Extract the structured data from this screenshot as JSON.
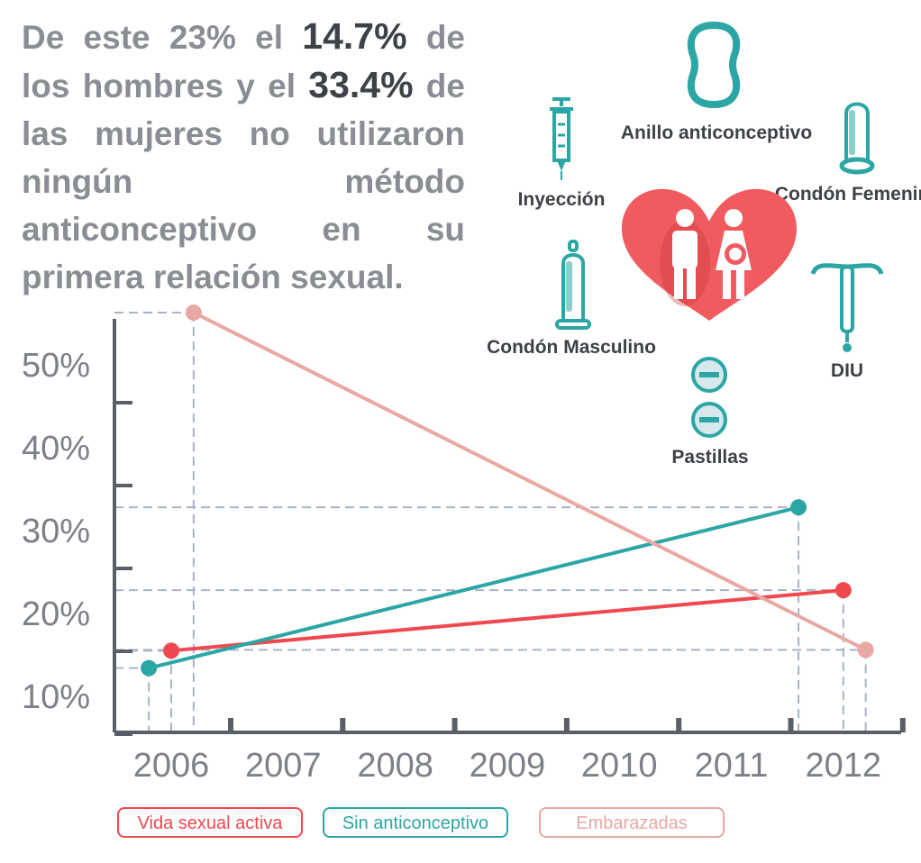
{
  "intro": {
    "p1": "De este 23% el ",
    "v1": "14.7%",
    "p2": " de los hombres y el ",
    "v2": "33.4%",
    "p3": " de las mujeres no utilizaron ningún método anticonceptivo en su primera relación sexual."
  },
  "methods": {
    "ring": "Anillo anticonceptivo",
    "injection": "Inyección",
    "female_condom": "Condón Femenino",
    "male_condom": "Condón Masculino",
    "iud": "DIU",
    "pills": "Pastillas"
  },
  "colors": {
    "teal": "#2ca6a4",
    "red": "#f0484f",
    "pink": "#e8a8a4",
    "heart": "#f15a5f",
    "axis": "#5a5e66",
    "guide": "#a9b3c6",
    "tick_text": "#7d8088"
  },
  "chart_data": {
    "type": "line",
    "x_ticks": [
      "2006",
      "2007",
      "2008",
      "2009",
      "2010",
      "2011",
      "2012"
    ],
    "y_ticks": [
      "10%",
      "20%",
      "30%",
      "40%",
      "50%"
    ],
    "series": [
      {
        "name": "Vida sexual activa",
        "color": "#f0484f",
        "points": [
          [
            2006,
            15.4
          ],
          [
            2012,
            22.7
          ]
        ]
      },
      {
        "name": "Sin anticonceptivo",
        "color": "#2ca6a4",
        "points": [
          [
            2005.8,
            13.3
          ],
          [
            2011.6,
            32.7
          ]
        ]
      },
      {
        "name": "Embarazadas",
        "color": "#e8a8a4",
        "points": [
          [
            2006.2,
            56.2
          ],
          [
            2012.2,
            15.5
          ]
        ]
      }
    ]
  }
}
